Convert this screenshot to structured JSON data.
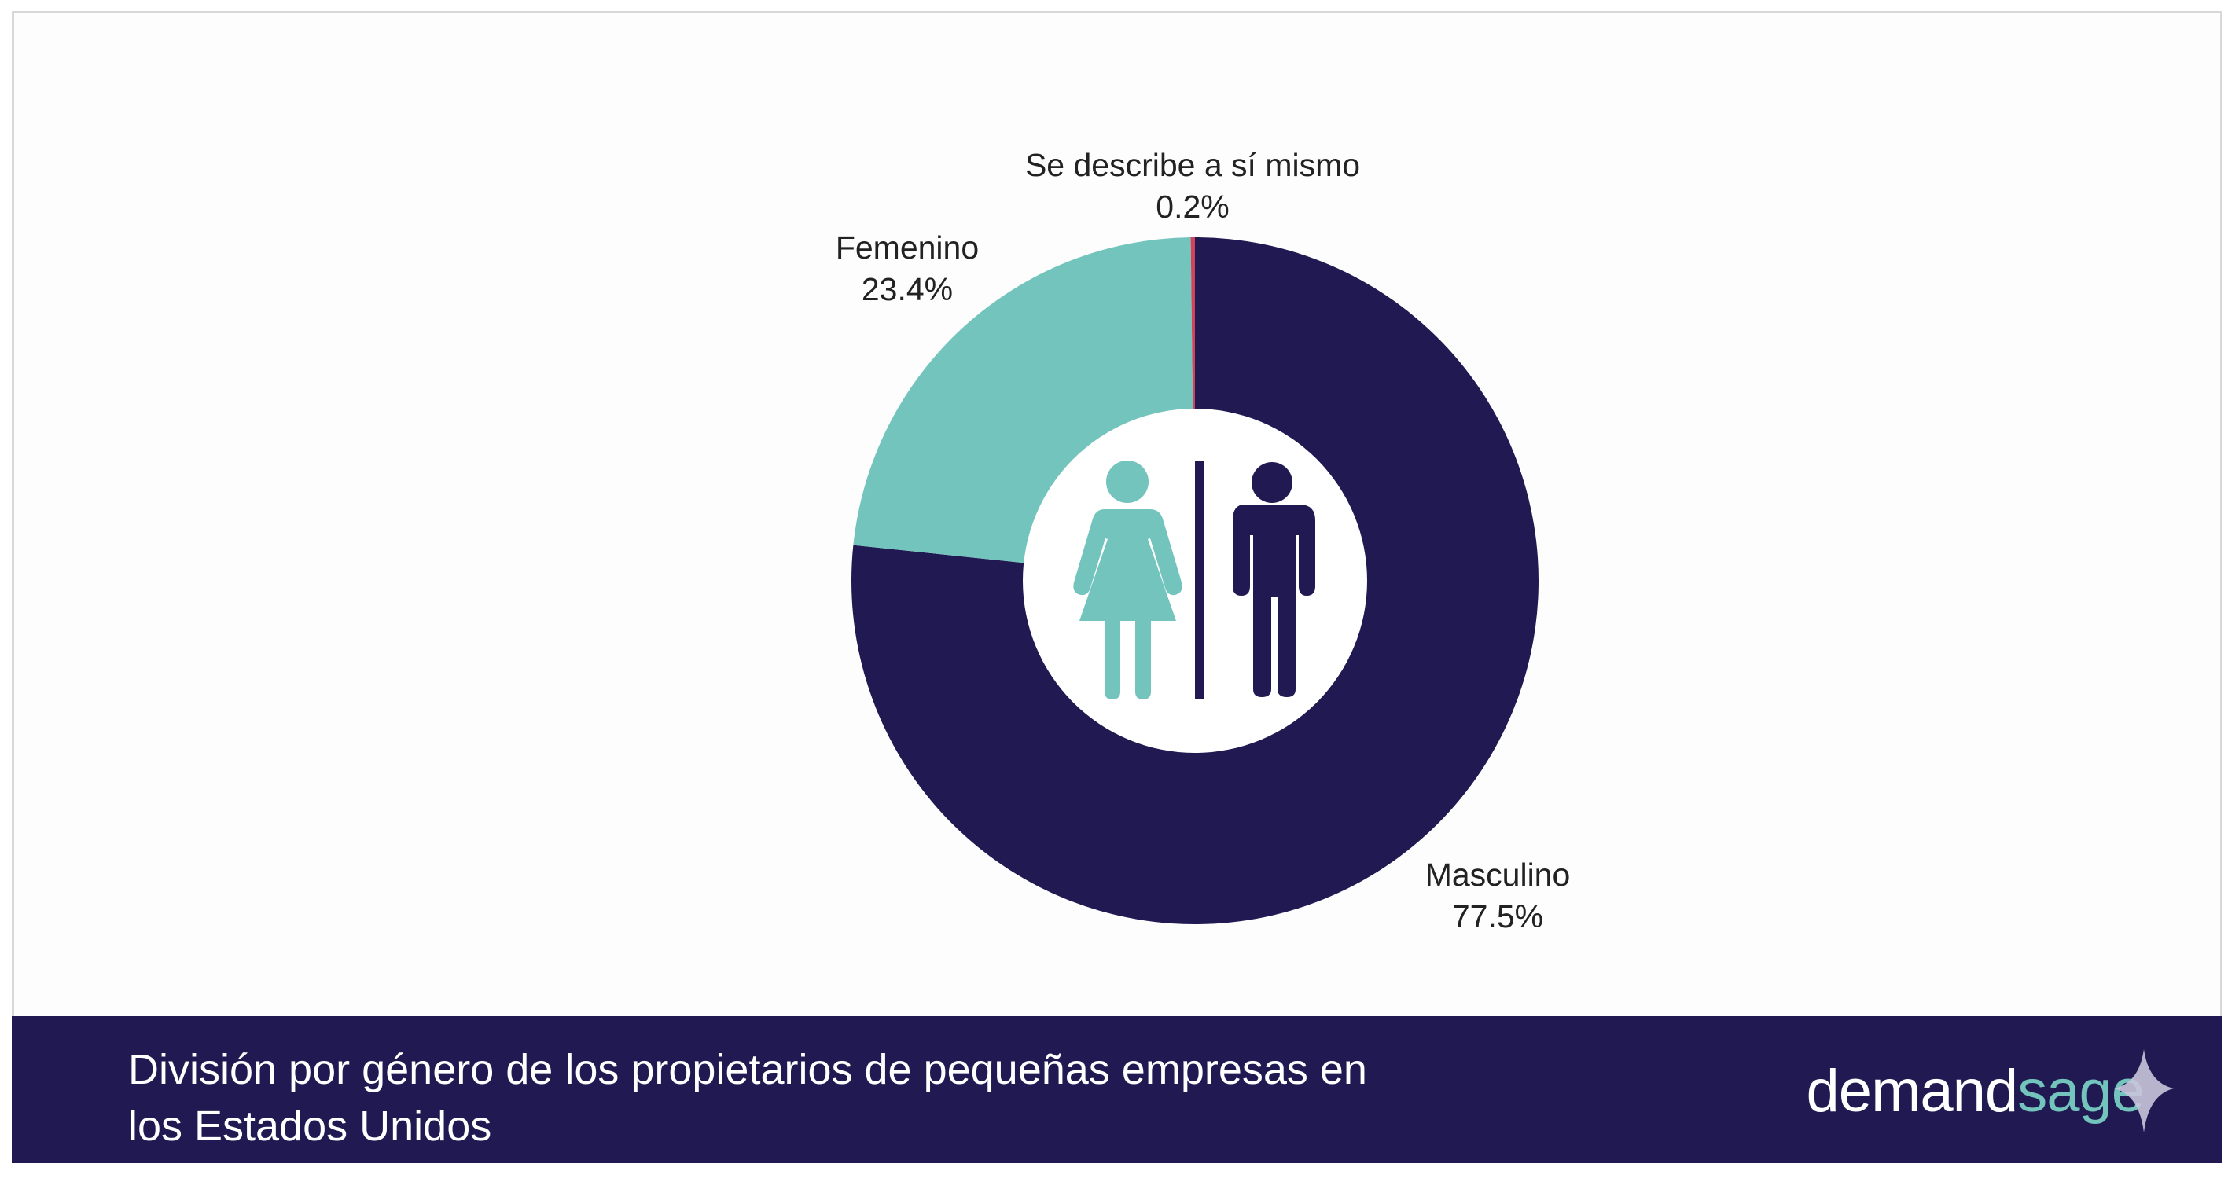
{
  "chart_data": {
    "type": "pie",
    "variant": "donut",
    "title": "División por género de los propietarios de pequeñas empresas en los Estados Unidos",
    "title_lines": [
      "División por género de los propietarios de pequeñas empresas en",
      "los Estados Unidos"
    ],
    "slices": [
      {
        "label": "Masculino",
        "value": 77.5,
        "value_label": "77.5%",
        "color": "#211a52"
      },
      {
        "label": "Femenino",
        "value": 23.4,
        "value_label": "23.4%",
        "color": "#72c4bc"
      },
      {
        "label": "Se describe a sí mismo",
        "value": 0.2,
        "value_label": "0.2%",
        "color": "#d0435a"
      }
    ],
    "center_icons": [
      "woman-icon",
      "man-icon"
    ]
  },
  "brand": {
    "logo_part1": "demand",
    "logo_part2": "sage",
    "accent": "#72c4bc",
    "footer_color": "#211a52"
  }
}
